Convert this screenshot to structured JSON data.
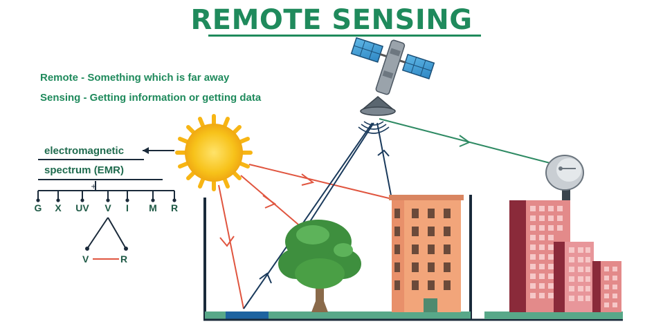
{
  "title": "REMOTE SENSING",
  "definitions": [
    "Remote - Something which is far away",
    "Sensing - Getting information or getting data"
  ],
  "emr": {
    "line1": "electromagnetic",
    "line2": "spectrum (EMR)",
    "plus": "+",
    "bands": [
      "G",
      "X",
      "UV",
      "V",
      "I",
      "M",
      "R"
    ],
    "visible_start": "V",
    "visible_end": "R"
  },
  "colors": {
    "title": "#1f8a5c",
    "incident_ray": "#e0553f",
    "sensor_ray": "#1a3a5c",
    "downlink": "#2e8a63",
    "sun": "#f7c21a"
  },
  "icons": [
    "sun-icon",
    "satellite-icon",
    "tree-icon",
    "building-icon",
    "ground-station-dish-icon",
    "city-buildings-icon"
  ]
}
